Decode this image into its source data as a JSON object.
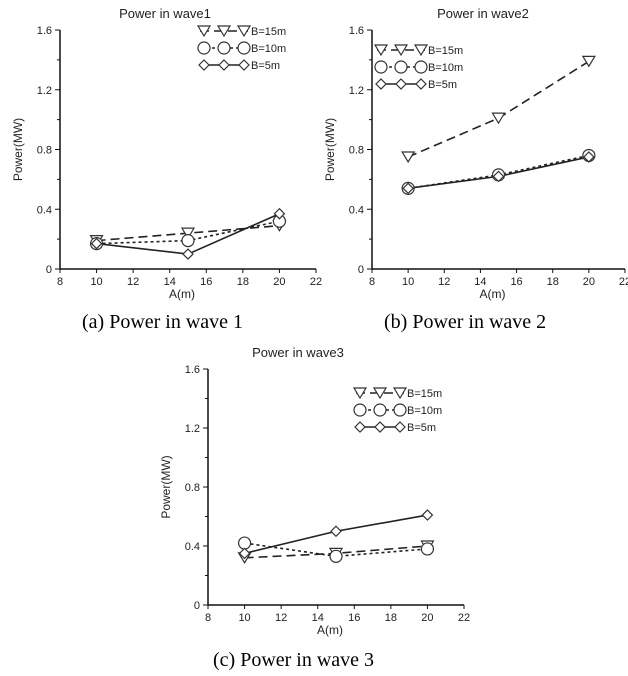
{
  "captions": [
    "(a)  Power  in  wave  1",
    "(b)  Power  in  wave  2",
    "(c)  Power  in  wave  3"
  ],
  "chart_data": [
    {
      "type": "line",
      "title": "Power in wave1",
      "xlabel": "A(m)",
      "ylabel": "Power(MW)",
      "xlim": [
        8,
        22
      ],
      "ylim": [
        0,
        1.6
      ],
      "xticks": [
        "8",
        "10",
        "12",
        "14",
        "16",
        "18",
        "20",
        "22"
      ],
      "yticks": [
        "0",
        "0.4",
        "0.8",
        "1.2",
        "1.6"
      ],
      "x": [
        10,
        15,
        20
      ],
      "legend_position": "top-right",
      "series": [
        {
          "name": "B=15m",
          "values": [
            0.19,
            0.24,
            0.29
          ],
          "dash": "long-dash",
          "marker": "triangle-down"
        },
        {
          "name": "B=10m",
          "values": [
            0.17,
            0.19,
            0.32
          ],
          "dash": "short-dash",
          "marker": "circle"
        },
        {
          "name": "B=5m",
          "values": [
            0.17,
            0.1,
            0.37
          ],
          "dash": "solid",
          "marker": "diamond"
        }
      ]
    },
    {
      "type": "line",
      "title": "Power in wave2",
      "xlabel": "A(m)",
      "ylabel": "Power(MW)",
      "xlim": [
        8,
        22
      ],
      "ylim": [
        0,
        1.6
      ],
      "xticks": [
        "8",
        "10",
        "12",
        "14",
        "16",
        "18",
        "20",
        "22"
      ],
      "yticks": [
        "0",
        "0.4",
        "0.8",
        "1.2",
        "1.6"
      ],
      "x": [
        10,
        15,
        20
      ],
      "legend_position": "top-left",
      "series": [
        {
          "name": "B=15m",
          "values": [
            0.75,
            1.01,
            1.39
          ],
          "dash": "long-dash",
          "marker": "triangle-down"
        },
        {
          "name": "B=10m",
          "values": [
            0.54,
            0.63,
            0.76
          ],
          "dash": "short-dash",
          "marker": "circle"
        },
        {
          "name": "B=5m",
          "values": [
            0.54,
            0.62,
            0.75
          ],
          "dash": "solid",
          "marker": "diamond"
        }
      ]
    },
    {
      "type": "line",
      "title": "Power in wave3",
      "xlabel": "A(m)",
      "ylabel": "Power(MW)",
      "xlim": [
        8,
        22
      ],
      "ylim": [
        0,
        1.6
      ],
      "xticks": [
        "8",
        "10",
        "12",
        "14",
        "16",
        "18",
        "20",
        "22"
      ],
      "yticks": [
        "0",
        "0.4",
        "0.8",
        "1.2",
        "1.6"
      ],
      "x": [
        10,
        15,
        20
      ],
      "legend_position": "top-right",
      "series": [
        {
          "name": "B=15m",
          "values": [
            0.32,
            0.35,
            0.4
          ],
          "dash": "long-dash",
          "marker": "triangle-down"
        },
        {
          "name": "B=10m",
          "values": [
            0.42,
            0.33,
            0.38
          ],
          "dash": "short-dash",
          "marker": "circle"
        },
        {
          "name": "B=5m",
          "values": [
            0.35,
            0.5,
            0.61
          ],
          "dash": "solid",
          "marker": "diamond"
        }
      ]
    }
  ]
}
